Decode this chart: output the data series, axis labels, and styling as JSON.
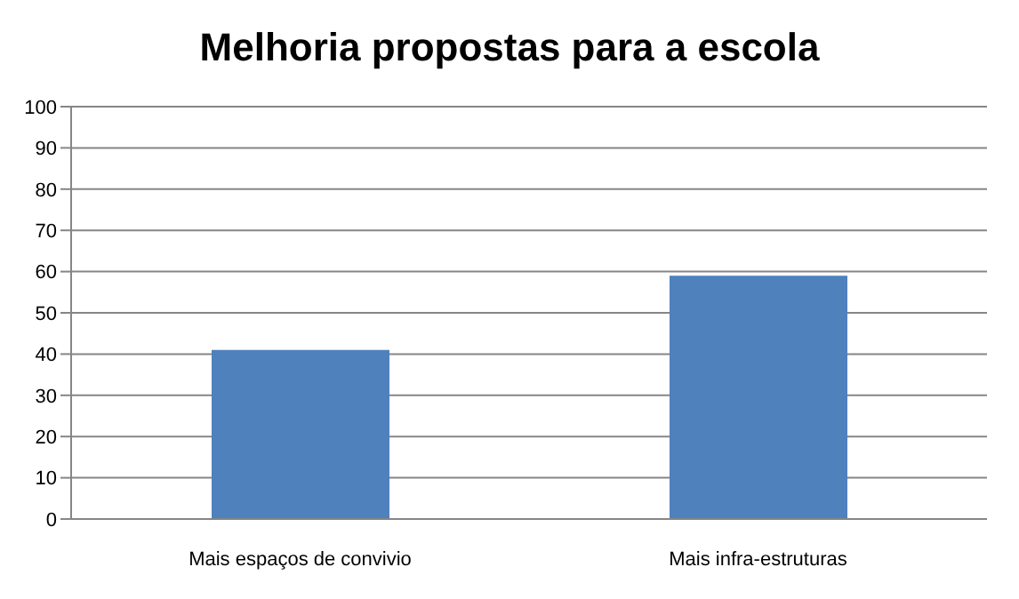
{
  "chart_data": {
    "type": "bar",
    "title": "Melhoria propostas para a escola",
    "categories": [
      "Mais espaços de convivio",
      "Mais infra-estruturas"
    ],
    "values": [
      41,
      59
    ],
    "color": "#4f81bd",
    "ylim": [
      0,
      100
    ],
    "yticks": [
      0,
      10,
      20,
      30,
      40,
      50,
      60,
      70,
      80,
      90,
      100
    ],
    "grid": "y"
  }
}
